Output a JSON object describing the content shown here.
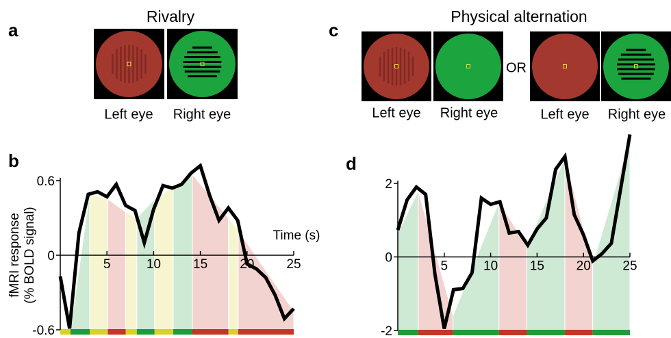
{
  "panels": [
    {
      "label": "a",
      "title": "Rivalry",
      "eyes": [
        "Left eye",
        "Right eye"
      ]
    },
    {
      "label": "c",
      "title": "Physical alternation",
      "eyes": [
        "Left eye",
        "Right eye",
        "Left eye",
        "Right eye"
      ],
      "separator": "OR"
    }
  ],
  "chart_data": [
    {
      "type": "line",
      "panel": "b",
      "x_label": "Time (s)",
      "y_label": [
        "fMRI response",
        "(% BOLD signal)"
      ],
      "xlim": [
        0,
        25
      ],
      "xticks": [
        5,
        10,
        15,
        20,
        25
      ],
      "ylim": [
        -0.6,
        0.6
      ],
      "yticks": [
        -0.6,
        0,
        0.6
      ],
      "x": [
        0,
        1,
        2,
        3,
        4,
        5,
        6,
        7,
        8,
        9,
        10,
        11,
        12,
        13,
        14,
        15,
        16,
        17,
        18,
        19,
        20,
        21,
        22,
        23,
        24,
        25
      ],
      "values": [
        -0.17,
        -0.59,
        0.18,
        0.49,
        0.51,
        0.47,
        0.57,
        0.4,
        0.36,
        0.1,
        0.37,
        0.56,
        0.54,
        0.57,
        0.66,
        0.72,
        0.48,
        0.28,
        0.38,
        0.28,
        -0.07,
        -0.11,
        -0.18,
        -0.32,
        -0.51,
        -0.43
      ],
      "color": "#000000",
      "segments": [
        {
          "start": 0,
          "end": 1.1,
          "color": "#d6d12b"
        },
        {
          "start": 1.1,
          "end": 3.15,
          "color": "#1f9a3c"
        },
        {
          "start": 3.15,
          "end": 5.1,
          "color": "#d6d12b"
        },
        {
          "start": 5.1,
          "end": 7.0,
          "color": "#c2362b"
        },
        {
          "start": 7.0,
          "end": 8.2,
          "color": "#d6d12b"
        },
        {
          "start": 8.2,
          "end": 10.1,
          "color": "#1f9a3c"
        },
        {
          "start": 10.1,
          "end": 12.1,
          "color": "#d6d12b"
        },
        {
          "start": 12.1,
          "end": 14.15,
          "color": "#1f9a3c"
        },
        {
          "start": 14.15,
          "end": 18.0,
          "color": "#c2362b"
        },
        {
          "start": 18.0,
          "end": 19.05,
          "color": "#d6d12b"
        },
        {
          "start": 19.05,
          "end": 25,
          "color": "#c2362b"
        }
      ],
      "prediction_x": [
        0,
        1.1,
        3.15,
        5.1,
        7.0,
        8.2,
        10.1,
        12.1,
        14.15,
        18.0,
        19.05,
        25
      ],
      "prediction": [
        -0.6,
        -0.6,
        0.5,
        0.45,
        0.35,
        0.3,
        0.45,
        0.55,
        0.65,
        0.3,
        0.2,
        -0.45
      ]
    },
    {
      "type": "line",
      "panel": "d",
      "xlim": [
        0,
        25
      ],
      "xticks": [
        5,
        10,
        15,
        20,
        25
      ],
      "ylim": [
        -2,
        2
      ],
      "yticks": [
        -2,
        0,
        2
      ],
      "x": [
        0,
        1,
        2,
        3,
        4,
        5,
        6,
        7,
        8,
        9,
        10,
        11,
        12,
        13,
        14,
        15,
        16,
        17,
        18,
        19,
        20,
        21,
        22,
        23,
        25
      ],
      "values": [
        0.73,
        1.55,
        1.9,
        1.7,
        -0.47,
        -1.95,
        -0.89,
        -0.86,
        -0.43,
        1.6,
        1.43,
        1.5,
        0.65,
        0.69,
        0.32,
        0.76,
        1.06,
        2.38,
        2.73,
        1.15,
        0.6,
        -0.11,
        0.09,
        0.37,
        3.33
      ],
      "color": "#000000",
      "segments": [
        {
          "start": 0,
          "end": 2.2,
          "color": "#1f9a3c"
        },
        {
          "start": 2.2,
          "end": 5.95,
          "color": "#c2362b"
        },
        {
          "start": 5.95,
          "end": 10.9,
          "color": "#1f9a3c"
        },
        {
          "start": 10.9,
          "end": 13.9,
          "color": "#c2362b"
        },
        {
          "start": 13.9,
          "end": 18.0,
          "color": "#1f9a3c"
        },
        {
          "start": 18.0,
          "end": 21.0,
          "color": "#c2362b"
        },
        {
          "start": 21.0,
          "end": 25,
          "color": "#1f9a3c"
        }
      ],
      "prediction_x": [
        0,
        2.2,
        5.95,
        10.9,
        13.9,
        18.0,
        21.0,
        25
      ],
      "prediction": [
        0.65,
        1.8,
        -1.6,
        1.5,
        0.3,
        2.7,
        -0.2,
        3.2
      ]
    }
  ]
}
